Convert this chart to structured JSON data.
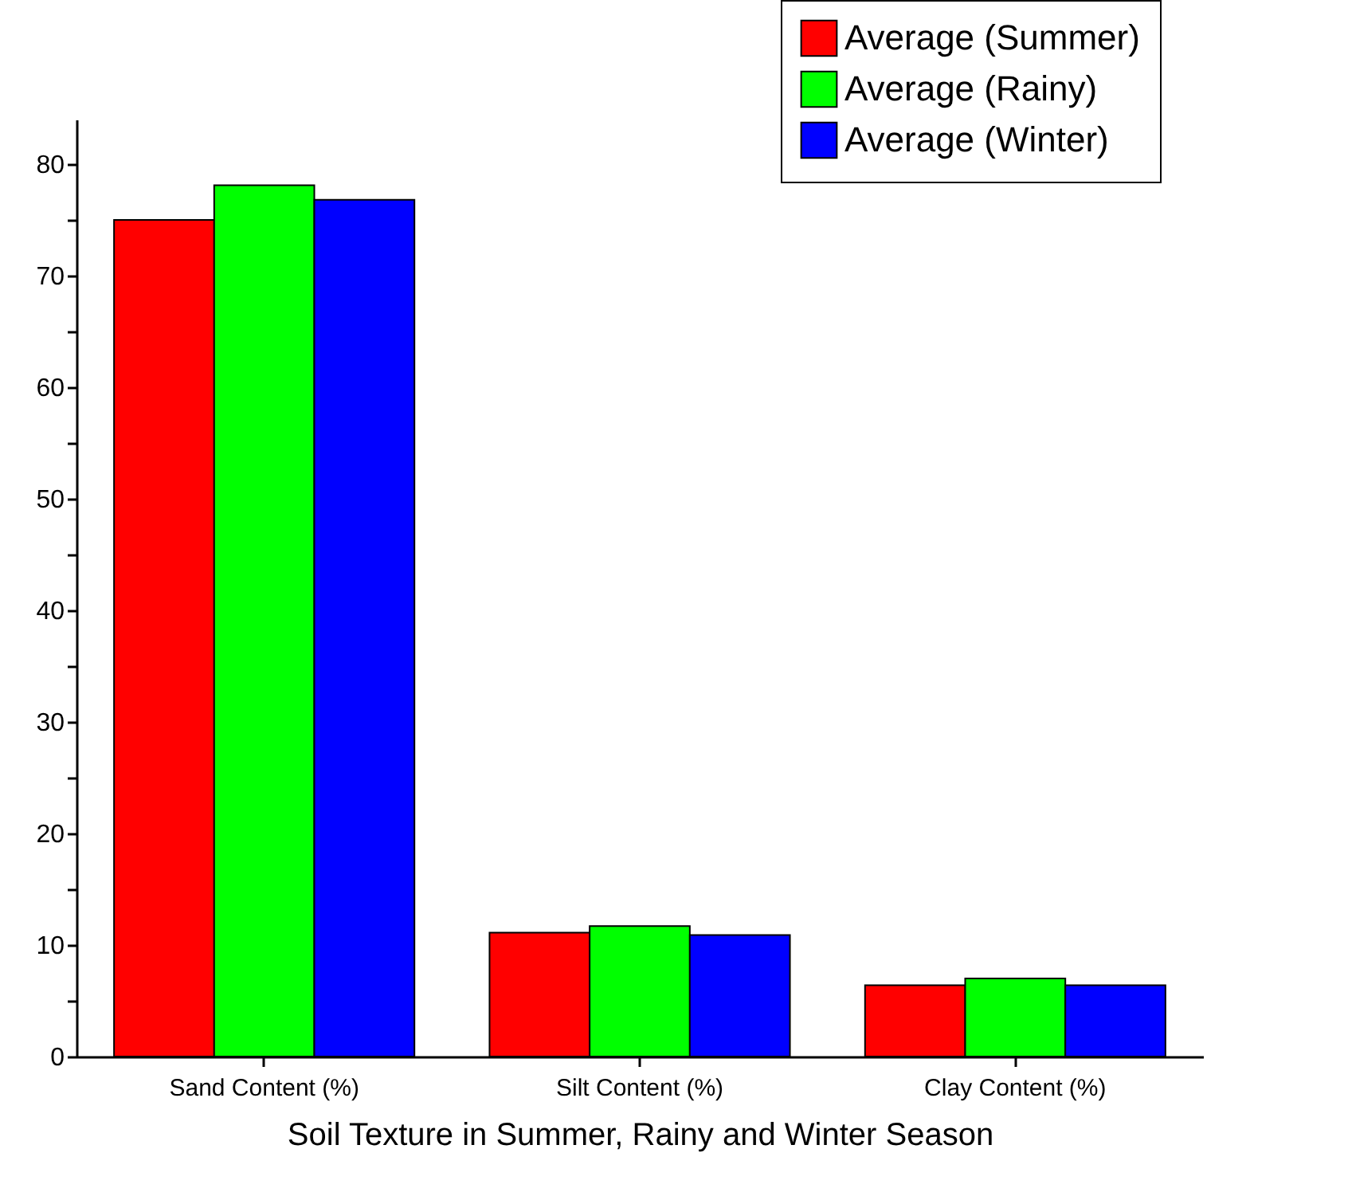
{
  "chart_data": {
    "type": "bar",
    "xlabel": "Soil Texture in Summer, Rainy and Winter Season",
    "categories": [
      "Sand Content (%)",
      "Silt Content (%)",
      "Clay Content (%)"
    ],
    "series": [
      {
        "name": "Average (Summer)",
        "color": "#ff0000",
        "values": [
          75.0,
          11.1,
          6.4
        ]
      },
      {
        "name": "Average (Rainy)",
        "color": "#00ff00",
        "values": [
          78.1,
          11.7,
          7.0
        ]
      },
      {
        "name": "Average (Winter)",
        "color": "#0000ff",
        "values": [
          76.8,
          10.9,
          6.4
        ]
      }
    ],
    "ylim": [
      0,
      84
    ],
    "yticks": [
      0,
      {
        "value": 5,
        "label": null
      },
      10,
      {
        "value": 15,
        "label": null
      },
      20,
      {
        "value": 25,
        "label": null
      },
      30,
      {
        "value": 35,
        "label": null
      },
      40,
      {
        "value": 45,
        "label": null
      },
      50,
      {
        "value": 55,
        "label": null
      },
      60,
      {
        "value": 65,
        "label": null
      },
      70,
      {
        "value": 75,
        "label": null
      },
      80
    ],
    "grid": false,
    "legend": "top right"
  }
}
